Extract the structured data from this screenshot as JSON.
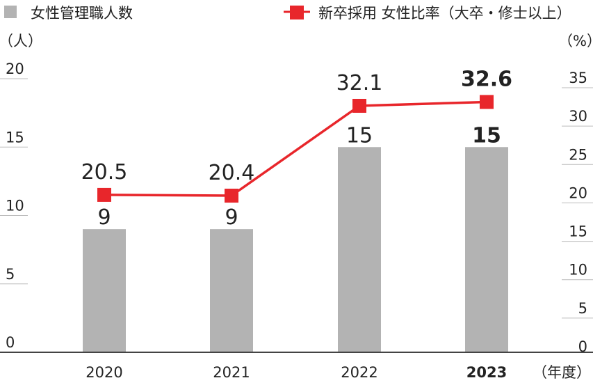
{
  "legend": {
    "bar_label": "女性管理職人数",
    "line_label": "新卒採用 女性比率（大卒・修士以上）"
  },
  "axes": {
    "left_unit": "（人）",
    "right_unit": "（%）",
    "x_unit": "（年度）"
  },
  "colors": {
    "bar": "#b3b3b3",
    "line": "#e8262b",
    "text": "#222222",
    "axis": "#444444",
    "tick": "#bbbbbb"
  },
  "chart_data": {
    "type": "bar",
    "categories": [
      "2020",
      "2021",
      "2022",
      "2023"
    ],
    "highlight_category": "2023",
    "series": [
      {
        "name": "女性管理職人数",
        "type": "bar",
        "axis": "left",
        "values": [
          9,
          9,
          15,
          15
        ]
      },
      {
        "name": "新卒採用 女性比率（大卒・修士以上）",
        "type": "line",
        "axis": "right",
        "values": [
          20.5,
          20.4,
          32.1,
          32.6
        ]
      }
    ],
    "left_axis": {
      "min": 0,
      "max": 20,
      "ticks": [
        0,
        5,
        10,
        15,
        20
      ]
    },
    "right_axis": {
      "min": 0,
      "max": 35,
      "ticks": [
        0,
        5,
        10,
        15,
        20,
        25,
        30,
        35
      ]
    },
    "value_labels": {
      "bars": [
        "9",
        "9",
        "15",
        "15"
      ],
      "line": [
        "20.5",
        "20.4",
        "32.1",
        "32.6"
      ]
    },
    "grid": false,
    "legend_position": "top"
  }
}
